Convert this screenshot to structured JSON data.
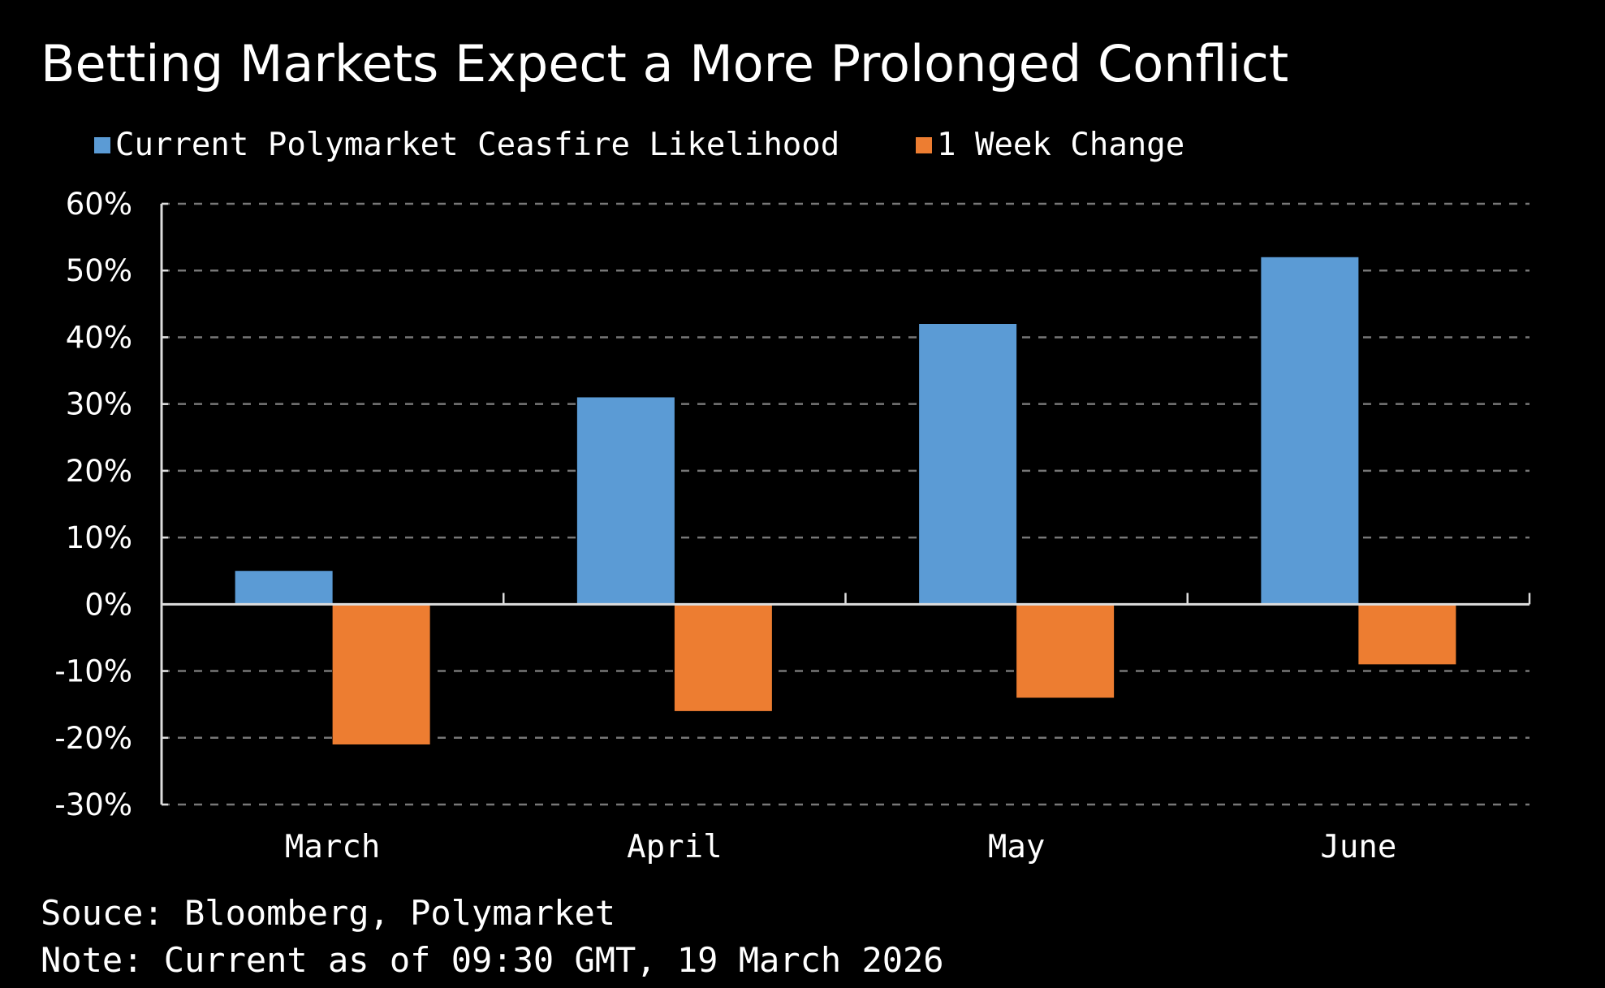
{
  "chart_data": {
    "type": "bar",
    "title": "Betting Markets Expect a More Prolonged Conflict",
    "categories": [
      "March",
      "April",
      "May",
      "June"
    ],
    "series": [
      {
        "name": "Current Polymarket Ceasfire Likelihood",
        "color": "#5b9bd5",
        "values": [
          5,
          31,
          42,
          52
        ]
      },
      {
        "name": "1 Week Change",
        "color": "#ed7d31",
        "values": [
          -21,
          -16,
          -14,
          -9
        ]
      }
    ],
    "ylim": [
      -30,
      60
    ],
    "yticks": [
      60,
      50,
      40,
      30,
      20,
      10,
      0,
      -10,
      -20,
      -30
    ],
    "ytick_labels": [
      "60%",
      "50%",
      "40%",
      "30%",
      "20%",
      "10%",
      "0%",
      "-10%",
      "-20%",
      "-30%"
    ],
    "xlabel": "",
    "ylabel": "",
    "grid": "horizontal dashed",
    "legend_position": "top-left"
  },
  "footer": {
    "source": "Souce: Bloomberg, Polymarket",
    "note": "Note: Current as of 09:30 GMT, 19 March 2026"
  }
}
